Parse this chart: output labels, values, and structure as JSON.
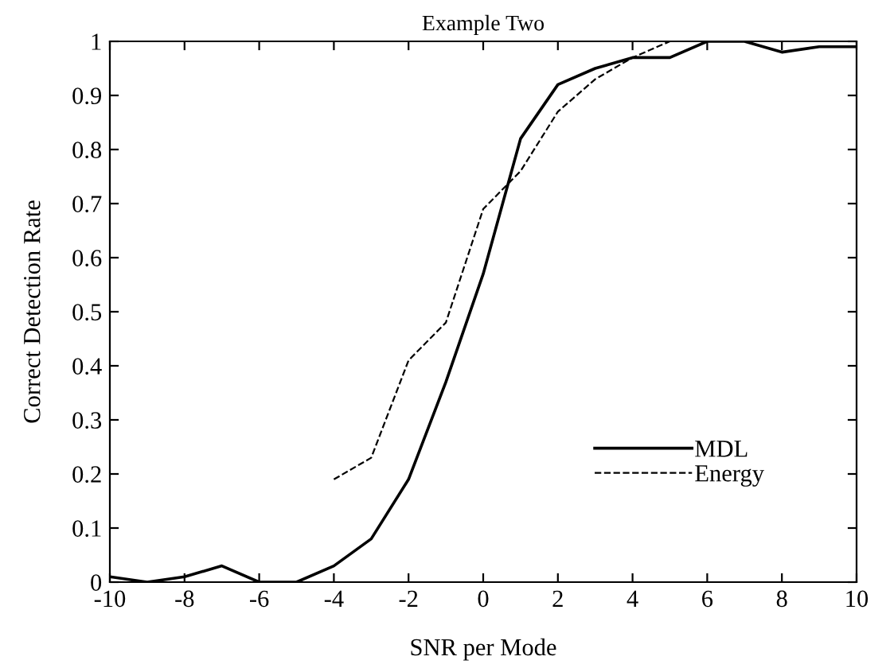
{
  "chart_data": {
    "type": "line",
    "title": "Example Two",
    "xlabel": "SNR per Mode",
    "ylabel": "Correct Detection Rate",
    "xlim": [
      -10,
      10
    ],
    "xticks": [
      -10,
      -8,
      -6,
      -4,
      -2,
      0,
      2,
      4,
      6,
      8,
      10
    ],
    "ylim": [
      0,
      1
    ],
    "yticks": [
      0,
      0.1,
      0.2,
      0.3,
      0.4,
      0.5,
      0.6,
      0.7,
      0.8,
      0.9,
      1
    ],
    "grid": false,
    "legend": "bottom right",
    "marker": "none",
    "series": [
      {
        "name": "MDL",
        "color": "#000000",
        "line_style": "solid",
        "x": [
          -10,
          -9,
          -8,
          -7,
          -6,
          -5,
          -4,
          -3,
          -2,
          -1,
          0,
          1,
          2,
          3,
          4,
          5,
          6,
          7,
          8,
          9,
          10
        ],
        "values": [
          0.01,
          0,
          0.01,
          0.03,
          0,
          0,
          0.03,
          0.08,
          0.19,
          0.37,
          0.57,
          0.82,
          0.92,
          0.95,
          0.97,
          0.97,
          1,
          1,
          0.98,
          0.99,
          0.99
        ]
      },
      {
        "name": "Energy",
        "color": "#000000",
        "line_style": "dashed",
        "x": [
          -4,
          -3,
          -2,
          -1,
          0,
          1,
          2,
          3,
          4,
          5,
          6,
          7,
          8,
          9,
          10
        ],
        "values": [
          0.19,
          0.23,
          0.41,
          0.48,
          0.69,
          0.76,
          0.87,
          0.93,
          0.97,
          1,
          1,
          1,
          1,
          1,
          1
        ]
      }
    ]
  }
}
